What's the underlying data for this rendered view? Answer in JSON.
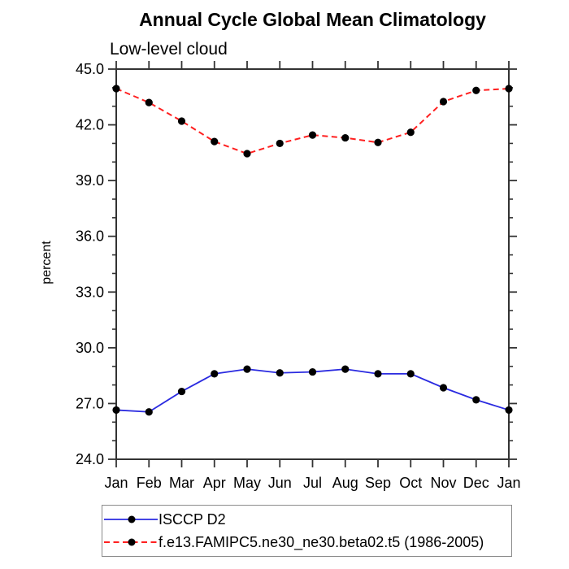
{
  "chart_data": {
    "type": "line",
    "title": "Annual Cycle Global Mean Climatology",
    "subtitle": "Low-level cloud",
    "ylabel": "percent",
    "xlabel": "",
    "x_categories": [
      "Jan",
      "Feb",
      "Mar",
      "Apr",
      "May",
      "Jun",
      "Jul",
      "Aug",
      "Sep",
      "Oct",
      "Nov",
      "Dec",
      "Jan"
    ],
    "series": [
      {
        "name": "ISCCP D2",
        "color": "#2a2ae0",
        "line_style": "solid",
        "marker": "black-filled-circle",
        "values": [
          26.65,
          26.55,
          27.65,
          28.6,
          28.85,
          28.65,
          28.7,
          28.85,
          28.6,
          28.6,
          27.85,
          27.2,
          26.65
        ]
      },
      {
        "name": "f.e13.FAMIPC5.ne30_ne30.beta02.t5 (1986-2005)",
        "color": "#ff2020",
        "line_style": "dashed",
        "marker": "black-filled-circle",
        "values": [
          43.95,
          43.2,
          42.2,
          41.1,
          40.45,
          41.0,
          41.45,
          41.3,
          41.05,
          41.6,
          43.25,
          43.85,
          43.95
        ]
      }
    ],
    "ylim": [
      24.0,
      45.0
    ],
    "yticks_major": [
      24,
      27,
      30,
      33,
      36,
      39,
      42,
      45
    ],
    "ytick_minor_interval": 1,
    "grid": false,
    "legend_position": "bottom",
    "marker_color": "#000000",
    "axis_color": "#333333"
  }
}
